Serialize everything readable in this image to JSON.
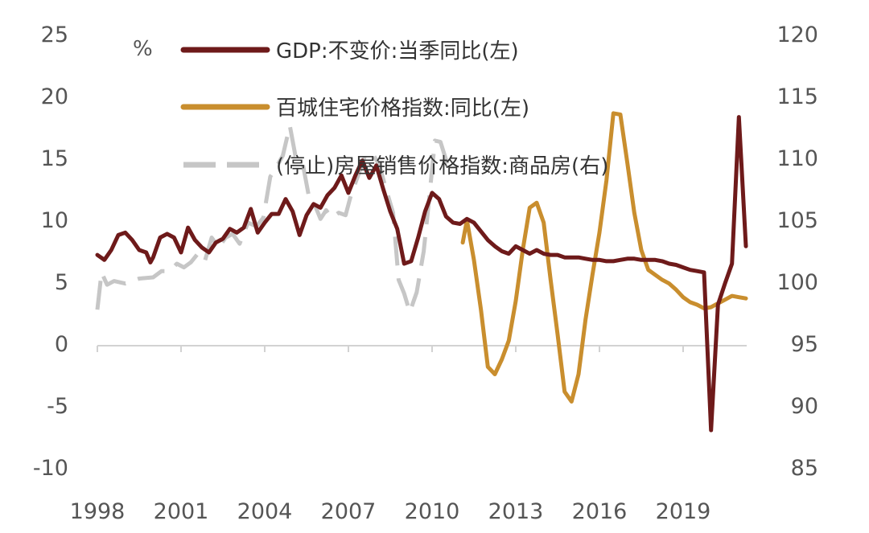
{
  "chart_data": {
    "type": "line",
    "title": "",
    "y_unit_left": "%",
    "x_ticks": [
      "1998",
      "2001",
      "2004",
      "2007",
      "2010",
      "2013",
      "2016",
      "2019"
    ],
    "x_tick_years": [
      1998,
      2001,
      2004,
      2007,
      2010,
      2013,
      2016,
      2019
    ],
    "xlim": [
      1998,
      2021.25
    ],
    "ylim_left": [
      -10,
      25
    ],
    "ylim_right": [
      85,
      120
    ],
    "y_ticks_left": [
      "25",
      "20",
      "15",
      "10",
      "5",
      "0",
      "-5",
      "-10"
    ],
    "y_ticks_right": [
      "120",
      "115",
      "110",
      "105",
      "100",
      "95",
      "90",
      "85"
    ],
    "series": [
      {
        "name": "GDP:不变价:当季同比(左)",
        "axis": "left",
        "color": "#6e1a1a",
        "style": "solid",
        "points": [
          [
            1998.0,
            7.2
          ],
          [
            1998.25,
            6.8
          ],
          [
            1998.5,
            7.6
          ],
          [
            1998.75,
            8.8
          ],
          [
            1999.0,
            9.0
          ],
          [
            1999.25,
            8.4
          ],
          [
            1999.5,
            7.6
          ],
          [
            1999.75,
            7.4
          ],
          [
            1999.9,
            6.6
          ],
          [
            2000.0,
            7.0
          ],
          [
            2000.25,
            8.6
          ],
          [
            2000.5,
            8.9
          ],
          [
            2000.75,
            8.6
          ],
          [
            2001.0,
            7.4
          ],
          [
            2001.25,
            9.4
          ],
          [
            2001.5,
            8.4
          ],
          [
            2001.75,
            7.8
          ],
          [
            2002.0,
            7.4
          ],
          [
            2002.25,
            8.2
          ],
          [
            2002.5,
            8.5
          ],
          [
            2002.75,
            9.3
          ],
          [
            2003.0,
            9.0
          ],
          [
            2003.25,
            9.4
          ],
          [
            2003.5,
            10.9
          ],
          [
            2003.75,
            9.0
          ],
          [
            2004.0,
            9.8
          ],
          [
            2004.25,
            10.5
          ],
          [
            2004.5,
            10.5
          ],
          [
            2004.75,
            11.7
          ],
          [
            2005.0,
            10.7
          ],
          [
            2005.25,
            8.8
          ],
          [
            2005.5,
            10.4
          ],
          [
            2005.75,
            11.3
          ],
          [
            2006.0,
            11.0
          ],
          [
            2006.25,
            12.0
          ],
          [
            2006.5,
            12.6
          ],
          [
            2006.75,
            13.6
          ],
          [
            2007.0,
            12.2
          ],
          [
            2007.25,
            13.6
          ],
          [
            2007.5,
            14.8
          ],
          [
            2007.75,
            13.4
          ],
          [
            2008.0,
            14.4
          ],
          [
            2008.25,
            12.5
          ],
          [
            2008.5,
            10.7
          ],
          [
            2008.75,
            9.3
          ],
          [
            2009.0,
            6.5
          ],
          [
            2009.25,
            6.7
          ],
          [
            2009.5,
            8.6
          ],
          [
            2009.75,
            10.7
          ],
          [
            2010.0,
            12.2
          ],
          [
            2010.25,
            11.7
          ],
          [
            2010.5,
            10.3
          ],
          [
            2010.75,
            9.8
          ],
          [
            2011.0,
            9.7
          ],
          [
            2011.25,
            10.1
          ],
          [
            2011.5,
            9.8
          ],
          [
            2011.75,
            9.1
          ],
          [
            2012.0,
            8.4
          ],
          [
            2012.25,
            7.9
          ],
          [
            2012.5,
            7.5
          ],
          [
            2012.75,
            7.3
          ],
          [
            2013.0,
            7.9
          ],
          [
            2013.25,
            7.6
          ],
          [
            2013.5,
            7.3
          ],
          [
            2013.75,
            7.6
          ],
          [
            2014.0,
            7.3
          ],
          [
            2014.25,
            7.2
          ],
          [
            2014.5,
            7.2
          ],
          [
            2014.75,
            7.0
          ],
          [
            2015.0,
            7.0
          ],
          [
            2015.25,
            7.0
          ],
          [
            2015.5,
            6.9
          ],
          [
            2015.75,
            6.8
          ],
          [
            2016.0,
            6.8
          ],
          [
            2016.25,
            6.7
          ],
          [
            2016.5,
            6.7
          ],
          [
            2016.75,
            6.8
          ],
          [
            2017.0,
            6.9
          ],
          [
            2017.25,
            6.9
          ],
          [
            2017.5,
            6.8
          ],
          [
            2017.75,
            6.8
          ],
          [
            2018.0,
            6.8
          ],
          [
            2018.25,
            6.7
          ],
          [
            2018.5,
            6.5
          ],
          [
            2018.75,
            6.4
          ],
          [
            2019.0,
            6.2
          ],
          [
            2019.25,
            6.0
          ],
          [
            2019.5,
            5.9
          ],
          [
            2019.75,
            5.8
          ],
          [
            2020.0,
            -6.9
          ],
          [
            2020.25,
            3.2
          ],
          [
            2020.5,
            4.9
          ],
          [
            2020.75,
            6.5
          ],
          [
            2021.0,
            18.3
          ],
          [
            2021.25,
            7.9
          ]
        ]
      },
      {
        "name": "百城住宅价格指数:同比(左)",
        "axis": "left",
        "color": "#c98e2e",
        "style": "solid",
        "points": [
          [
            2011.1,
            8.2
          ],
          [
            2011.25,
            10.0
          ],
          [
            2011.5,
            6.8
          ],
          [
            2011.75,
            2.8
          ],
          [
            2012.0,
            -1.8
          ],
          [
            2012.25,
            -2.4
          ],
          [
            2012.5,
            -1.2
          ],
          [
            2012.75,
            0.3
          ],
          [
            2013.0,
            3.5
          ],
          [
            2013.25,
            7.6
          ],
          [
            2013.5,
            11.0
          ],
          [
            2013.75,
            11.4
          ],
          [
            2014.0,
            9.8
          ],
          [
            2014.25,
            5.2
          ],
          [
            2014.5,
            0.8
          ],
          [
            2014.75,
            -3.8
          ],
          [
            2015.0,
            -4.6
          ],
          [
            2015.25,
            -2.4
          ],
          [
            2015.5,
            2.0
          ],
          [
            2015.75,
            5.6
          ],
          [
            2016.0,
            9.0
          ],
          [
            2016.25,
            13.2
          ],
          [
            2016.5,
            18.6
          ],
          [
            2016.75,
            18.5
          ],
          [
            2017.0,
            14.6
          ],
          [
            2017.25,
            10.6
          ],
          [
            2017.5,
            7.6
          ],
          [
            2017.75,
            6.0
          ],
          [
            2018.0,
            5.6
          ],
          [
            2018.25,
            5.2
          ],
          [
            2018.5,
            4.9
          ],
          [
            2018.75,
            4.4
          ],
          [
            2019.0,
            3.8
          ],
          [
            2019.25,
            3.4
          ],
          [
            2019.5,
            3.2
          ],
          [
            2019.75,
            2.9
          ],
          [
            2020.0,
            3.0
          ],
          [
            2020.25,
            3.3
          ],
          [
            2020.5,
            3.6
          ],
          [
            2020.75,
            3.9
          ],
          [
            2021.0,
            3.8
          ],
          [
            2021.25,
            3.7
          ]
        ]
      },
      {
        "name": "(停止)房屋销售价格指数:商品房(右)",
        "axis": "right",
        "color": "#c6c6c6",
        "style": "dashed",
        "points": [
          [
            1998.0,
            97.8
          ],
          [
            1998.15,
            100.8
          ],
          [
            1998.35,
            99.8
          ],
          [
            1998.6,
            100.1
          ],
          [
            1999.0,
            99.9
          ],
          [
            1999.5,
            100.3
          ],
          [
            2000.0,
            100.4
          ],
          [
            2000.3,
            100.9
          ],
          [
            2000.6,
            100.9
          ],
          [
            2000.85,
            101.5
          ],
          [
            2001.1,
            101.2
          ],
          [
            2001.35,
            101.6
          ],
          [
            2001.6,
            102.3
          ],
          [
            2001.85,
            101.7
          ],
          [
            2002.1,
            103.6
          ],
          [
            2002.35,
            102.8
          ],
          [
            2002.6,
            103.6
          ],
          [
            2002.85,
            103.9
          ],
          [
            2003.1,
            103.1
          ],
          [
            2003.4,
            104.8
          ],
          [
            2003.7,
            104.5
          ],
          [
            2003.95,
            105.2
          ],
          [
            2004.2,
            108.5
          ],
          [
            2004.4,
            109.2
          ],
          [
            2004.65,
            110.2
          ],
          [
            2004.9,
            112.6
          ],
          [
            2005.1,
            110.2
          ],
          [
            2005.35,
            109.7
          ],
          [
            2005.6,
            106.7
          ],
          [
            2005.8,
            106.2
          ],
          [
            2006.0,
            105.1
          ],
          [
            2006.2,
            105.8
          ],
          [
            2006.4,
            105.2
          ],
          [
            2006.65,
            105.6
          ],
          [
            2006.9,
            105.4
          ],
          [
            2007.1,
            107.1
          ],
          [
            2007.35,
            108.6
          ],
          [
            2007.6,
            110.2
          ],
          [
            2007.85,
            110.4
          ],
          [
            2008.1,
            109.5
          ],
          [
            2008.35,
            107.5
          ],
          [
            2008.6,
            105.6
          ],
          [
            2008.8,
            100.2
          ],
          [
            2009.0,
            99.1
          ],
          [
            2009.2,
            97.6
          ],
          [
            2009.45,
            99.2
          ],
          [
            2009.7,
            102.5
          ],
          [
            2009.9,
            106.8
          ],
          [
            2010.1,
            111.4
          ],
          [
            2010.3,
            111.3
          ],
          [
            2010.55,
            109.5
          ]
        ]
      }
    ]
  },
  "legend": {
    "gdp": "GDP:不变价:当季同比(左)",
    "bai_cheng": "百城住宅价格指数:同比(左)",
    "house_index": "(停止)房屋销售价格指数:商品房(右)"
  }
}
